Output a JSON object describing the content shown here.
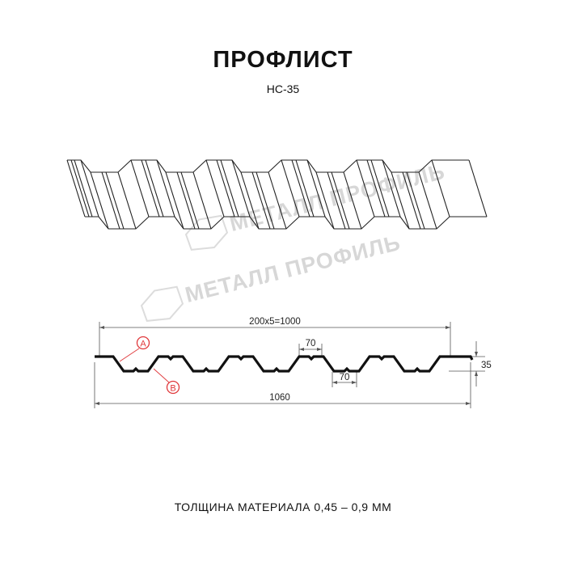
{
  "header": {
    "title": "ПРОФЛИСТ",
    "model": "НС-35"
  },
  "watermark": {
    "text": "МЕТАЛЛ ПРОФИЛЬ"
  },
  "drawing": {
    "pitch_label": "200x5=1000",
    "top_flange_label": "70",
    "bottom_flange_label": "70",
    "height_label": "35",
    "total_width_label": "1060",
    "marker_a": "A",
    "marker_b": "B",
    "marker_color": "#e0383b"
  },
  "footer": {
    "thickness": "ТОЛЩИНА МАТЕРИАЛА 0,45 – 0,9 ММ"
  }
}
